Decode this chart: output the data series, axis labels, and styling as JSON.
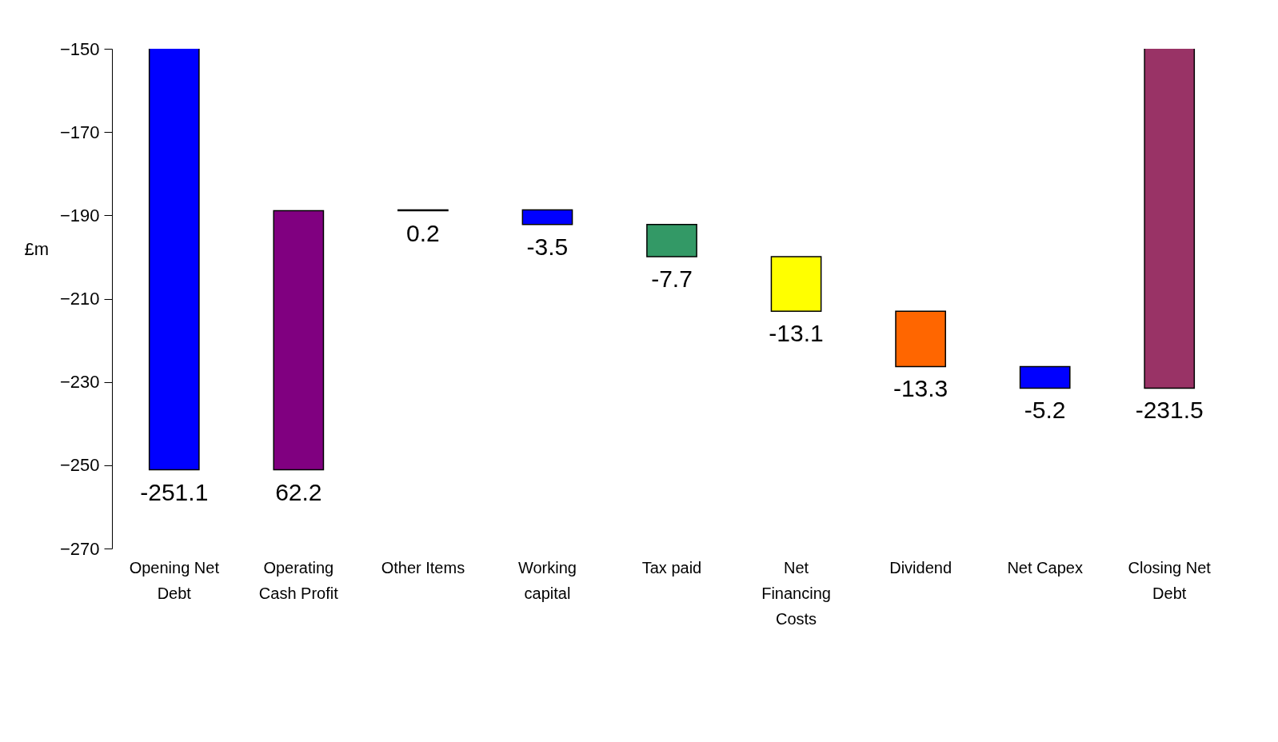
{
  "chart_data": {
    "type": "bar",
    "ylabel": "£m",
    "categories": [
      "Opening Net Debt",
      "Operating Cash Profit",
      "Other Items",
      "Working capital",
      "Tax paid",
      "Net Financing Costs",
      "Dividend",
      "Net Capex",
      "Closing Net Debt"
    ],
    "values": [
      -251.1,
      62.2,
      0.2,
      -3.5,
      -7.7,
      -13.1,
      -13.3,
      -5.2,
      -231.5
    ],
    "base": [
      0,
      -251.1,
      -188.9,
      -188.7,
      -192.2,
      -199.9,
      -213.0,
      -226.3,
      0
    ],
    "colors": [
      "#0000ff",
      "#800080",
      "#000000",
      "#0000ff",
      "#339966",
      "#ffff00",
      "#ff6600",
      "#0000ff",
      "#993366"
    ],
    "ylim": [
      -270,
      -150
    ],
    "yticks": [
      -270,
      -250,
      -230,
      -210,
      -190,
      -170,
      -150
    ],
    "data_labels": true,
    "grid": false
  }
}
